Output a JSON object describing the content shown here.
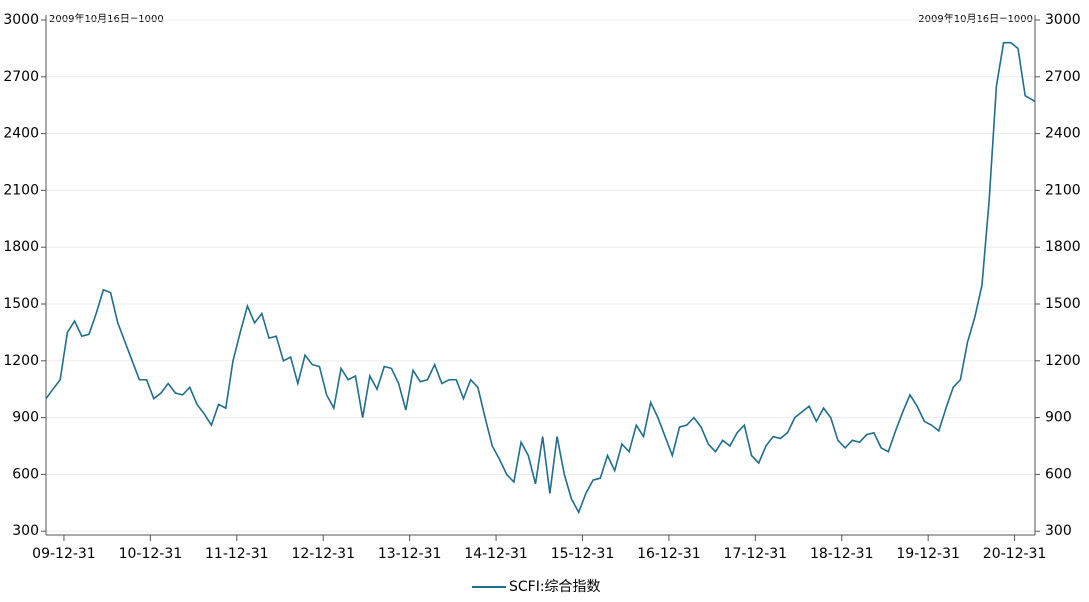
{
  "chart_data": {
    "type": "line",
    "annotations": [
      "2009年10月16日=1000",
      "2009年10月16日=1000"
    ],
    "x": [
      "09-10-16",
      "09-11-15",
      "09-12-15",
      "10-01-15",
      "10-02-15",
      "10-03-15",
      "10-04-15",
      "10-05-15",
      "10-06-15",
      "10-07-15",
      "10-08-15",
      "10-09-15",
      "10-10-15",
      "10-11-15",
      "10-12-15",
      "11-01-15",
      "11-02-15",
      "11-03-15",
      "11-04-15",
      "11-05-15",
      "11-06-15",
      "11-07-15",
      "11-08-15",
      "11-09-15",
      "11-10-15",
      "11-11-15",
      "11-12-15",
      "12-01-15",
      "12-02-15",
      "12-03-15",
      "12-04-15",
      "12-05-15",
      "12-06-15",
      "12-07-15",
      "12-08-15",
      "12-09-15",
      "12-10-15",
      "12-11-15",
      "12-12-15",
      "13-01-15",
      "13-02-15",
      "13-03-15",
      "13-04-15",
      "13-05-15",
      "13-06-15",
      "13-07-15",
      "13-08-15",
      "13-09-15",
      "13-10-15",
      "13-11-15",
      "13-12-15",
      "14-01-15",
      "14-02-15",
      "14-03-15",
      "14-04-15",
      "14-05-15",
      "14-06-15",
      "14-07-15",
      "14-08-15",
      "14-09-15",
      "14-10-15",
      "14-11-15",
      "14-12-15",
      "15-01-15",
      "15-02-15",
      "15-03-15",
      "15-04-15",
      "15-05-15",
      "15-06-15",
      "15-07-15",
      "15-08-15",
      "15-09-15",
      "15-10-15",
      "15-11-15",
      "15-12-15",
      "16-01-15",
      "16-02-15",
      "16-03-15",
      "16-04-15",
      "16-05-15",
      "16-06-15",
      "16-07-15",
      "16-08-15",
      "16-09-15",
      "16-10-15",
      "16-11-15",
      "16-12-15",
      "17-01-15",
      "17-02-15",
      "17-03-15",
      "17-04-15",
      "17-05-15",
      "17-06-15",
      "17-07-15",
      "17-08-15",
      "17-09-15",
      "17-10-15",
      "17-11-15",
      "17-12-15",
      "18-01-15",
      "18-02-15",
      "18-03-15",
      "18-04-15",
      "18-05-15",
      "18-06-15",
      "18-07-15",
      "18-08-15",
      "18-09-15",
      "18-10-15",
      "18-11-15",
      "18-12-15",
      "19-01-15",
      "19-02-15",
      "19-03-15",
      "19-04-15",
      "19-05-15",
      "19-06-15",
      "19-07-15",
      "19-08-15",
      "19-09-15",
      "19-10-15",
      "19-11-15",
      "19-12-15",
      "20-01-15",
      "20-02-15",
      "20-03-15",
      "20-04-15",
      "20-05-15",
      "20-06-15",
      "20-07-15",
      "20-08-15",
      "20-09-15",
      "20-10-15",
      "20-11-15",
      "20-12-15",
      "21-01-15",
      "21-02-15",
      "21-03-26"
    ],
    "series": [
      {
        "name": "SCFI:综合指数",
        "color": "#1f6e8c",
        "values": [
          1000,
          1050,
          1100,
          1350,
          1410,
          1330,
          1340,
          1450,
          1575,
          1560,
          1400,
          1300,
          1200,
          1100,
          1100,
          1000,
          1030,
          1080,
          1030,
          1020,
          1060,
          970,
          920,
          860,
          970,
          950,
          1200,
          1350,
          1490,
          1400,
          1450,
          1320,
          1330,
          1200,
          1220,
          1080,
          1230,
          1180,
          1170,
          1020,
          950,
          1160,
          1100,
          1120,
          900,
          1120,
          1050,
          1170,
          1160,
          1080,
          940,
          1150,
          1090,
          1100,
          1180,
          1080,
          1100,
          1100,
          1000,
          1100,
          1060,
          900,
          750,
          680,
          600,
          560,
          770,
          700,
          550,
          800,
          500,
          800,
          600,
          470,
          400,
          500,
          570,
          580,
          700,
          620,
          760,
          720,
          860,
          800,
          980,
          900,
          800,
          700,
          850,
          860,
          900,
          850,
          760,
          720,
          780,
          750,
          820,
          860,
          700,
          660,
          750,
          800,
          790,
          820,
          900,
          930,
          960,
          880,
          950,
          900,
          780,
          740,
          780,
          770,
          810,
          820,
          740,
          720,
          830,
          930,
          1020,
          960,
          880,
          860,
          830,
          950,
          1060,
          1100,
          1300,
          1430,
          1600,
          2050,
          2650,
          2880,
          2880,
          2850,
          2600,
          2570
        ]
      }
    ],
    "xlim": [
      "09-10-16",
      "21-03-26"
    ],
    "xticks": [
      "09-12-31",
      "10-12-31",
      "11-12-31",
      "12-12-31",
      "13-12-31",
      "14-12-31",
      "15-12-31",
      "16-12-31",
      "17-12-31",
      "18-12-31",
      "19-12-31",
      "20-12-31"
    ],
    "ylim": [
      280,
      3000
    ],
    "yticks": [
      300,
      600,
      900,
      1200,
      1500,
      1800,
      2100,
      2400,
      2700,
      3000
    ],
    "y2lim": [
      280,
      3000
    ],
    "y2ticks": [
      300,
      600,
      900,
      1200,
      1500,
      1800,
      2100,
      2400,
      2700,
      3000
    ],
    "grid": true
  }
}
